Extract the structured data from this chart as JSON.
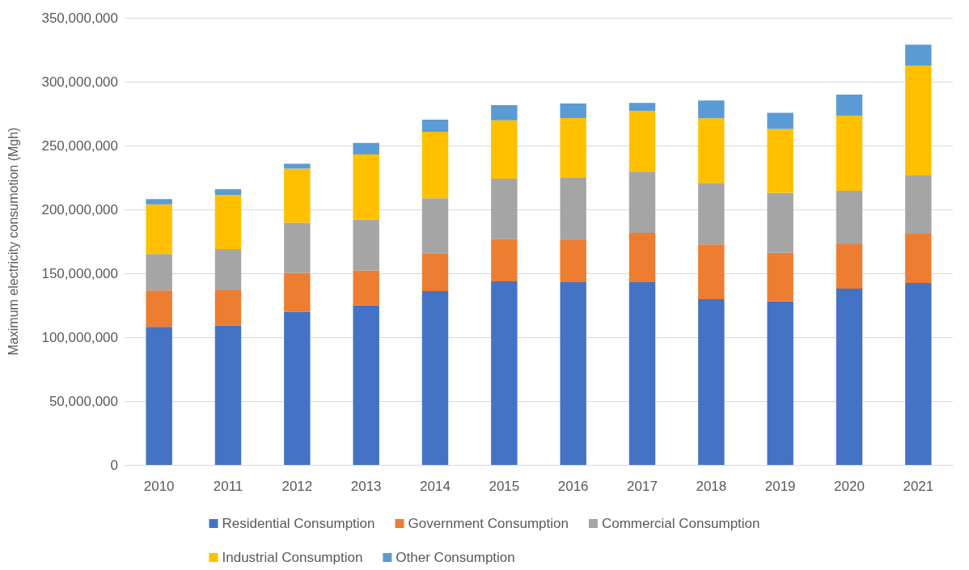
{
  "chart_data": {
    "type": "bar",
    "stacked": true,
    "ylabel": "Maximum electricity consumotion (Mgh)",
    "categories": [
      "2010",
      "2011",
      "2012",
      "2013",
      "2014",
      "2015",
      "2016",
      "2017",
      "2018",
      "2019",
      "2020",
      "2021"
    ],
    "series": [
      {
        "name": "Residential Consumption",
        "color": "#4472c4",
        "values": [
          108000000,
          109000000,
          120000000,
          125000000,
          136000000,
          143700000,
          143000000,
          143000000,
          129700000,
          128000000,
          138000000,
          142400000
        ]
      },
      {
        "name": "Government Consumption",
        "color": "#ed7d31",
        "values": [
          28500000,
          27700000,
          30300000,
          27000000,
          29700000,
          33000000,
          33000000,
          38600000,
          43000000,
          38000000,
          34800000,
          38600000
        ]
      },
      {
        "name": "Commercial Consumption",
        "color": "#a5a5a5",
        "values": [
          28500000,
          32300000,
          39300000,
          40000000,
          43000000,
          47400000,
          48700000,
          48000000,
          48000000,
          47000000,
          41800000,
          45600000
        ]
      },
      {
        "name": "Industrial Consumption",
        "color": "#ffc000",
        "values": [
          39000000,
          42400000,
          42400000,
          51000000,
          52000000,
          45600000,
          46800000,
          47500000,
          50600000,
          50000000,
          58800000,
          86000000
        ]
      },
      {
        "name": "Other Consumption",
        "color": "#5b9bd5",
        "values": [
          4000000,
          4400000,
          3800000,
          9000000,
          9500000,
          12000000,
          11400000,
          6300000,
          14000000,
          12600000,
          16500000,
          16400000
        ]
      }
    ],
    "ylim": [
      0,
      350000000
    ],
    "yticks": [
      {
        "value": 0,
        "label": "0"
      },
      {
        "value": 50000000,
        "label": "50,000,000"
      },
      {
        "value": 100000000,
        "label": "100,000,000"
      },
      {
        "value": 150000000,
        "label": "150,000,000"
      },
      {
        "value": 200000000,
        "label": "200,000,000"
      },
      {
        "value": 250000000,
        "label": "250,000,000"
      },
      {
        "value": 300000000,
        "label": "300,000,000"
      },
      {
        "value": 350000000,
        "label": "350,000,000"
      }
    ],
    "grid": "y",
    "legend": "bottom"
  }
}
